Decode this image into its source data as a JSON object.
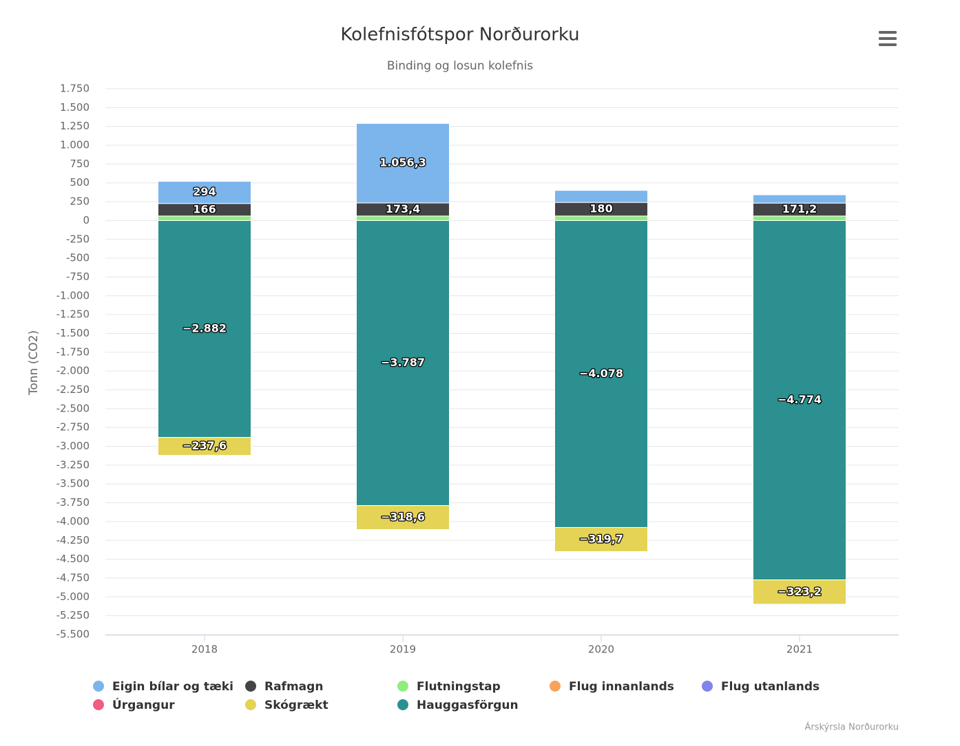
{
  "chart_data": {
    "type": "stacked_bar",
    "title": "Kolefnisfótspor Norðurorku",
    "subtitle": "Binding og losun kolefnis",
    "y_axis_label": "Tonn (CO2)",
    "credits": "Árskýrsla Norðurorku",
    "categories": [
      "2018",
      "2019",
      "2020",
      "2021"
    ],
    "series": [
      {
        "name": "Eigin bílar og tæki",
        "color": "#7cb5ec",
        "values": [
          294,
          1056.3,
          160,
          110
        ],
        "value_labels": [
          "294",
          "1.056,3",
          null,
          null
        ]
      },
      {
        "name": "Rafmagn",
        "color": "#434348",
        "values": [
          166,
          173.4,
          180,
          171.2
        ],
        "value_labels": [
          "166",
          "173,4",
          "180",
          "171,2"
        ]
      },
      {
        "name": "Flutningstap",
        "color": "#90ed7d",
        "values": [
          60,
          60,
          60,
          60
        ]
      },
      {
        "name": "Flug innanlands",
        "color": "#f7a35c",
        "values": [
          0,
          0,
          0,
          0
        ]
      },
      {
        "name": "Flug utanlands",
        "color": "#8085e9",
        "values": [
          0,
          0,
          0,
          0
        ]
      },
      {
        "name": "Úrgangur",
        "color": "#f15c80",
        "values": [
          0,
          0,
          0,
          0
        ]
      },
      {
        "name": "Skógrækt",
        "color": "#e4d354",
        "values": [
          -237.6,
          -318.6,
          -319.7,
          -323.2
        ],
        "value_labels": [
          "−237,6",
          "−318,6",
          "−319,7",
          "−323,2"
        ]
      },
      {
        "name": "Hauggasförgun",
        "color": "#2b908f",
        "values": [
          -2882,
          -3787,
          -4078,
          -4774
        ],
        "value_labels": [
          "−2.882",
          "−3.787",
          "−4.078",
          "−4.774"
        ]
      }
    ],
    "ylim": [
      -5500,
      1750
    ],
    "yticks": [
      {
        "value": 1750,
        "label": "1.750"
      },
      {
        "value": 1500,
        "label": "1.500"
      },
      {
        "value": 1250,
        "label": "1.250"
      },
      {
        "value": 1000,
        "label": "1.000"
      },
      750,
      500,
      250,
      0,
      {
        "value": -250,
        "label": "-250"
      },
      {
        "value": -500,
        "label": "-500"
      },
      {
        "value": -750,
        "label": "-750"
      },
      {
        "value": -1000,
        "label": "-1.000"
      },
      {
        "value": -1250,
        "label": "-1.250"
      },
      {
        "value": -1500,
        "label": "-1.500"
      },
      {
        "value": -1750,
        "label": "-1.750"
      },
      {
        "value": -2000,
        "label": "-2.000"
      },
      {
        "value": -2250,
        "label": "-2.250"
      },
      {
        "value": -2500,
        "label": "-2.500"
      },
      {
        "value": -2750,
        "label": "-2.750"
      },
      {
        "value": -3000,
        "label": "-3.000"
      },
      {
        "value": -3250,
        "label": "-3.250"
      },
      {
        "value": -3500,
        "label": "-3.500"
      },
      {
        "value": -3750,
        "label": "-3.750"
      },
      {
        "value": -4000,
        "label": "-4.000"
      },
      {
        "value": -4250,
        "label": "-4.250"
      },
      {
        "value": -4500,
        "label": "-4.500"
      },
      {
        "value": -4750,
        "label": "-4.750"
      },
      {
        "value": -5000,
        "label": "-5.000"
      },
      {
        "value": -5250,
        "label": "-5.250"
      },
      {
        "value": -5500,
        "label": "-5.500"
      }
    ],
    "grid": true,
    "legend": "bottom"
  }
}
